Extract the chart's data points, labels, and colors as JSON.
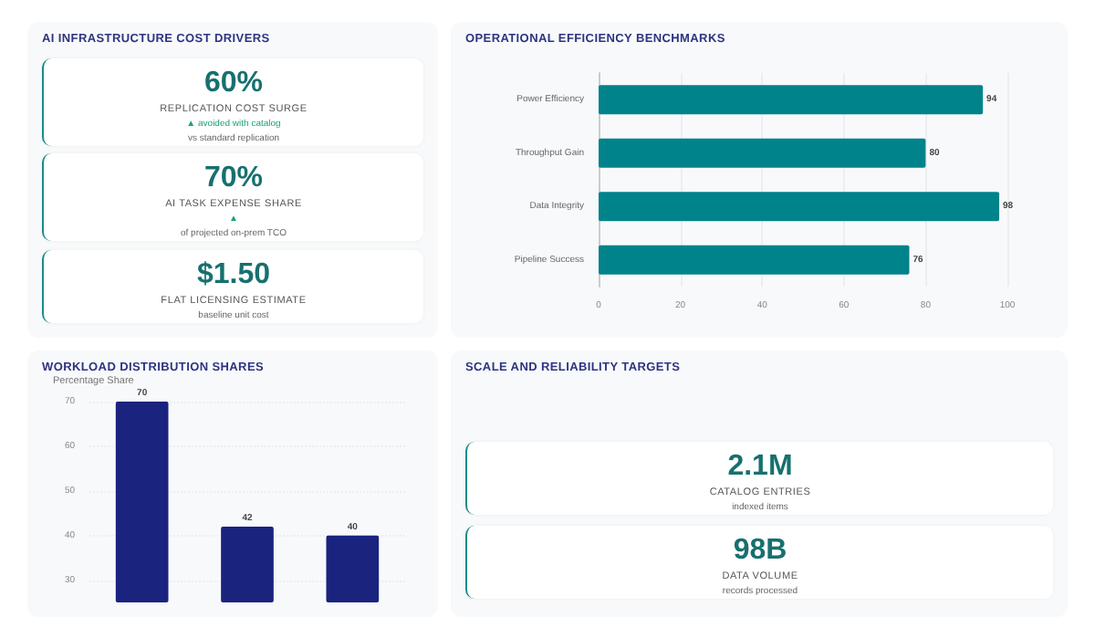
{
  "chart_data": [
    {
      "type": "other",
      "title": "AI INFRASTRUCTURE COST DRIVERS",
      "categories": [
        "REPLICATION COST SURGE",
        "AI TASK EXPENSE SHARE",
        "FLAT LICENSING ESTIMATE"
      ],
      "value_labels": [
        "60%",
        "70%",
        "$1.50"
      ],
      "annotations": [
        {
          "text": "▲ avoided with catalog",
          "x": "REPLICATION COST SURGE"
        },
        {
          "text": "vs standard replication",
          "x": "REPLICATION COST SURGE"
        },
        {
          "text": "▲",
          "x": "AI TASK EXPENSE SHARE"
        },
        {
          "text": "of projected on-prem TCO",
          "x": "AI TASK EXPENSE SHARE"
        },
        {
          "text": "baseline unit cost",
          "x": "FLAT LICENSING ESTIMATE"
        }
      ]
    },
    {
      "type": "bar",
      "orientation": "horizontal",
      "title": "OPERATIONAL EFFICIENCY BENCHMARKS",
      "categories": [
        "Power Efficiency",
        "Throughput Gain",
        "Data Integrity",
        "Pipeline Success"
      ],
      "values": [
        94,
        80,
        98,
        76
      ],
      "color": "#00838a",
      "xlim": [
        0,
        100
      ],
      "xticks": [
        0,
        20,
        40,
        60,
        80,
        100
      ],
      "grid": "x",
      "data_labels": true
    },
    {
      "type": "bar",
      "title": "WORKLOAD DISTRIBUTION SHARES",
      "ylabel": "Percentage Share",
      "categories": [
        null,
        null,
        null
      ],
      "values": [
        70,
        42,
        40
      ],
      "color": "#1a237e",
      "ylim": [
        25,
        70
      ],
      "yticks": [
        30,
        40,
        50,
        60,
        70
      ],
      "grid": "y",
      "data_labels": true
    },
    {
      "type": "other",
      "title": "SCALE AND RELIABILITY TARGETS",
      "categories": [
        "CATALOG ENTRIES",
        "DATA VOLUME"
      ],
      "value_labels": [
        "2.1M",
        "98B"
      ],
      "annotations": [
        {
          "text": "indexed items",
          "x": "CATALOG ENTRIES"
        },
        {
          "text": "records processed",
          "x": "DATA VOLUME"
        }
      ]
    }
  ]
}
